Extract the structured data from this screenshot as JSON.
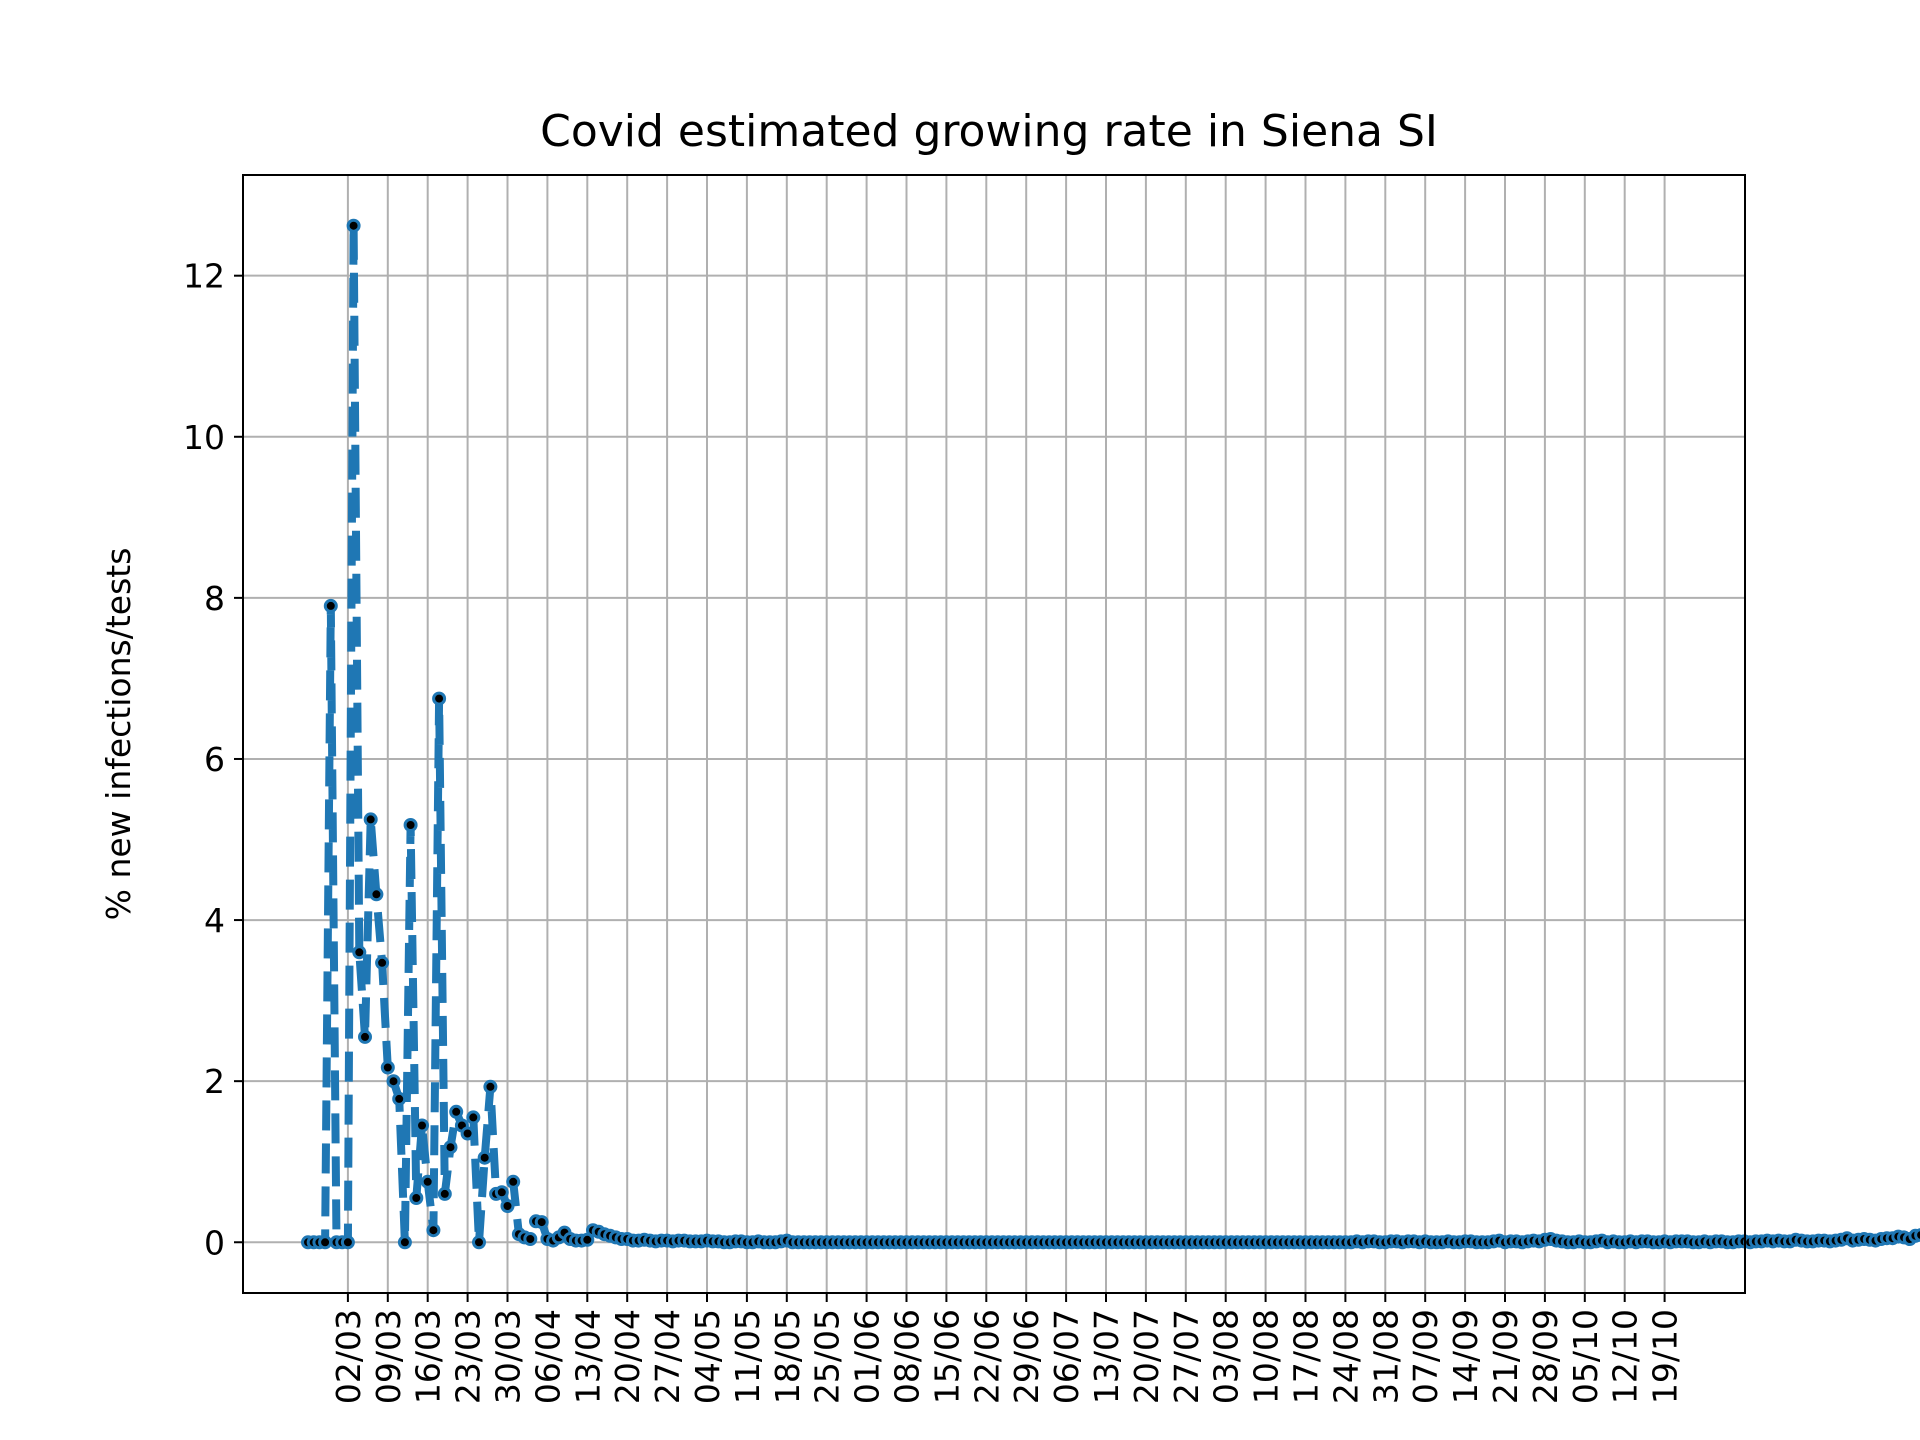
{
  "chart_data": {
    "type": "line",
    "title": "Covid estimated growing rate in Siena SI",
    "xlabel": "",
    "ylabel": "% new infections/tests",
    "ylim": [
      -0.63,
      13.25
    ],
    "y_ticks": [
      0,
      2,
      4,
      6,
      8,
      10,
      12
    ],
    "x_tick_labels": [
      "02/03",
      "09/03",
      "16/03",
      "23/03",
      "30/03",
      "06/04",
      "13/04",
      "20/04",
      "27/04",
      "04/05",
      "11/05",
      "18/05",
      "25/05",
      "01/06",
      "08/06",
      "15/06",
      "22/06",
      "29/06",
      "06/07",
      "13/07",
      "20/07",
      "27/07",
      "03/08",
      "10/08",
      "17/08",
      "24/08",
      "31/08",
      "07/09",
      "14/09",
      "21/09",
      "28/09",
      "05/10",
      "12/10",
      "19/10"
    ],
    "first_date": "24/02",
    "grid": true,
    "line_style": "dashed",
    "line_color": "#1f77b4",
    "marker_color": "#000000",
    "series": [
      {
        "values": [
          0,
          0,
          0,
          0,
          7.9,
          0,
          0,
          0,
          12.62,
          3.6,
          2.55,
          5.25,
          4.32,
          3.47,
          2.17,
          2.0,
          1.78,
          0,
          5.18,
          0.55,
          1.45,
          0.75,
          0.15,
          6.75,
          0.6,
          1.18,
          1.62,
          1.45,
          1.35,
          1.55,
          0,
          1.05,
          1.93,
          0.6,
          0.62,
          0.45,
          0.75,
          0.1,
          0.06,
          0.04,
          0.26,
          0.25,
          0.04,
          0.02,
          0.06,
          0.12,
          0.04,
          0.02,
          0.02,
          0.03,
          0.15,
          0.13,
          0.1,
          0.08,
          0.06,
          0.04,
          0.04,
          0.02,
          0.02,
          0.03,
          0.02,
          0.01,
          0.02,
          0.02,
          0.01,
          0.02,
          0.02,
          0.01,
          0.01,
          0.01,
          0.02,
          0.01,
          0.01,
          0.0,
          0.0,
          0.01,
          0.01,
          0.0,
          0.0,
          0.01,
          0.0,
          0.0,
          0.0,
          0.01,
          0.02,
          0.0,
          0.0,
          0.0,
          0.0,
          0.0,
          0.0,
          0.0,
          0.0,
          0.0,
          0.0,
          0.0,
          0.0,
          0.0,
          0.0,
          0.0,
          0.0,
          0.0,
          0.0,
          0.0,
          0.0,
          0.0,
          0.0,
          0.0,
          0.0,
          0.0,
          0.0,
          0.0,
          0.0,
          0.0,
          0.0,
          0.0,
          0.0,
          0.0,
          0.0,
          0.0,
          0.0,
          0.0,
          0.0,
          0.0,
          0.0,
          0.0,
          0.0,
          0.0,
          0.0,
          0.0,
          0.0,
          0.0,
          0.0,
          0.0,
          0.0,
          0.0,
          0.0,
          0.0,
          0.0,
          0.0,
          0.0,
          0.0,
          0.0,
          0.0,
          0.0,
          0.0,
          0.0,
          0.0,
          0.0,
          0.0,
          0.0,
          0.0,
          0.0,
          0.0,
          0.0,
          0.0,
          0.0,
          0.0,
          0.0,
          0.0,
          0.0,
          0.0,
          0.0,
          0.0,
          0.0,
          0.0,
          0.0,
          0.0,
          0.0,
          0.0,
          0.0,
          0.0,
          0.0,
          0.0,
          0.0,
          0.0,
          0.0,
          0.0,
          0.0,
          0.0,
          0.0,
          0.0,
          0.0,
          0.0,
          0.01,
          0.0,
          0.01,
          0.01,
          0.0,
          0.0,
          0.01,
          0.01,
          0.0,
          0.01,
          0.01,
          0.0,
          0.01,
          0.0,
          0.0,
          0.0,
          0.01,
          0.0,
          0.0,
          0.01,
          0.01,
          0.0,
          0.0,
          0.0,
          0.01,
          0.02,
          0.0,
          0.01,
          0.01,
          0.0,
          0.01,
          0.02,
          0.01,
          0.03,
          0.04,
          0.02,
          0.01,
          0.0,
          0.0,
          0.01,
          0.0,
          0.0,
          0.01,
          0.02,
          0.0,
          0.01,
          0.0,
          0.0,
          0.01,
          0.0,
          0.01,
          0.01,
          0.0,
          0.0,
          0.01,
          0.0,
          0.01,
          0.01,
          0.01,
          0.0,
          0.0,
          0.01,
          0.0,
          0.01,
          0.01,
          0.0,
          0.0,
          0.01,
          0.01,
          0.0,
          0.01,
          0.01,
          0.02,
          0.01,
          0.02,
          0.01,
          0.01,
          0.03,
          0.02,
          0.01,
          0.01,
          0.02,
          0.02,
          0.01,
          0.02,
          0.03,
          0.05,
          0.02,
          0.03,
          0.04,
          0.03,
          0.02,
          0.04,
          0.05,
          0.05,
          0.07,
          0.06,
          0.04,
          0.08,
          0.09,
          0.14,
          0.08,
          0.1
        ]
      }
    ]
  }
}
